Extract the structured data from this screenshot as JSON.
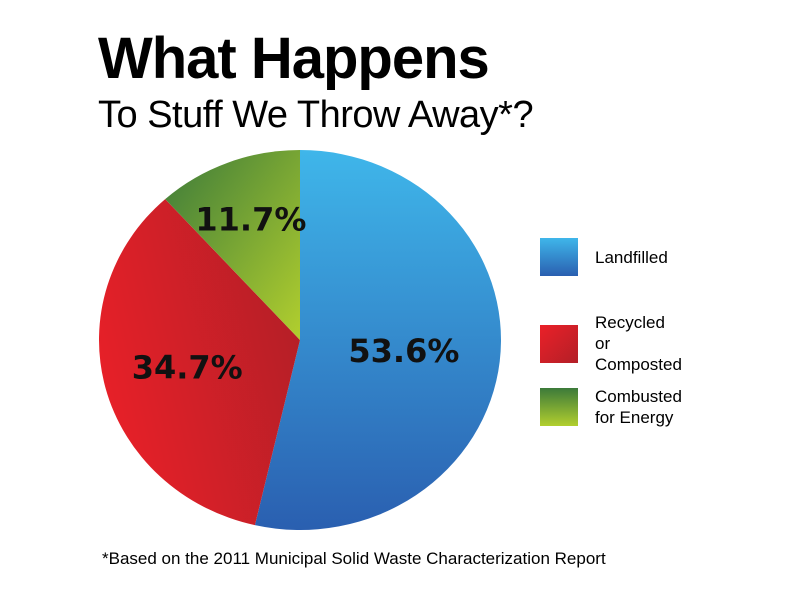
{
  "title": "What Happens",
  "subtitle": "To Stuff We Throw Away*?",
  "footnote": "*Based on the 2011 Municipal Solid Waste Characterization Report",
  "chart_data": {
    "type": "pie",
    "title": "What Happens",
    "subtitle": "To Stuff We Throw Away*?",
    "legend_position": "right",
    "slices": [
      {
        "name": "Landfilled",
        "value": 53.6,
        "label": "53.6%",
        "color_light": "#3fb6ea",
        "color_dark": "#2a5fb0"
      },
      {
        "name": "Recycled or Composted",
        "value": 34.7,
        "label": "34.7%",
        "color_light": "#ea2028",
        "color_dark": "#b31f27"
      },
      {
        "name": "Combusted for Energy",
        "value": 11.7,
        "label": "11.7%",
        "color_light": "#b2cf2e",
        "color_dark": "#3c7a3a"
      }
    ]
  },
  "legend": [
    {
      "label": "Landfilled",
      "color_light": "#3fb6ea",
      "color_dark": "#2a5fb0"
    },
    {
      "label": "Recycled or\nComposted",
      "color_light": "#ea2028",
      "color_dark": "#b31f27"
    },
    {
      "label": "Combusted\nfor Energy",
      "color_light": "#b2cf2e",
      "color_dark": "#3c7a3a"
    }
  ]
}
